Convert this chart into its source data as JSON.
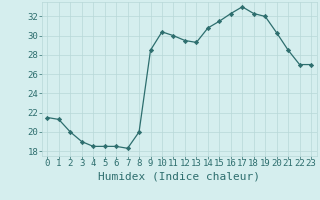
{
  "x": [
    0,
    1,
    2,
    3,
    4,
    5,
    6,
    7,
    8,
    9,
    10,
    11,
    12,
    13,
    14,
    15,
    16,
    17,
    18,
    19,
    20,
    21,
    22,
    23
  ],
  "y": [
    21.5,
    21.3,
    20.0,
    19.0,
    18.5,
    18.5,
    18.5,
    18.3,
    20.0,
    28.5,
    30.4,
    30.0,
    29.5,
    29.3,
    30.8,
    31.5,
    32.3,
    33.0,
    32.3,
    32.0,
    30.3,
    28.5,
    27.0,
    27.0
  ],
  "line_color": "#2d6e6e",
  "marker": "D",
  "markersize": 2.2,
  "background_color": "#d5eeee",
  "grid_color": "#b8d8d8",
  "xlabel": "Humidex (Indice chaleur)",
  "ylim": [
    17.5,
    33.5
  ],
  "yticks": [
    18,
    20,
    22,
    24,
    26,
    28,
    30,
    32
  ],
  "xticks": [
    0,
    1,
    2,
    3,
    4,
    5,
    6,
    7,
    8,
    9,
    10,
    11,
    12,
    13,
    14,
    15,
    16,
    17,
    18,
    19,
    20,
    21,
    22,
    23
  ],
  "tick_color": "#2d6e6e",
  "label_color": "#2d6e6e",
  "xlabel_fontsize": 8,
  "tick_fontsize": 6.5,
  "linewidth": 0.9
}
